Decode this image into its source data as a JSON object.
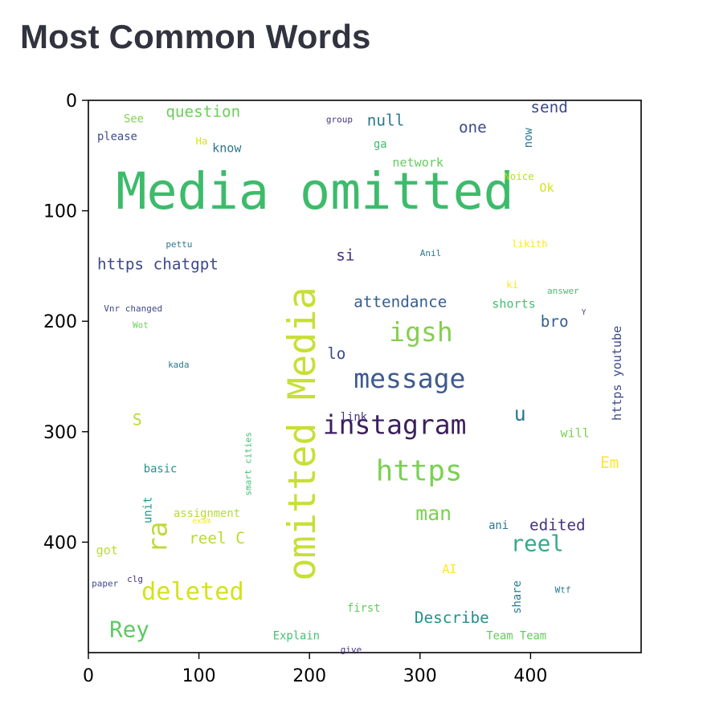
{
  "header": {
    "title": "Most Common Words"
  },
  "chart_data": {
    "type": "wordcloud",
    "title": "",
    "xlabel": "",
    "ylabel": "",
    "xlim": [
      0,
      500
    ],
    "ylim": [
      0,
      500
    ],
    "y_inverted": true,
    "grid": false,
    "xticks": [
      0,
      100,
      200,
      300,
      400
    ],
    "yticks": [
      0,
      100,
      200,
      300,
      400
    ],
    "words": [
      {
        "text": "Media omitted",
        "x": 25,
        "y": 98,
        "size": 46,
        "color": "#3dbb6b",
        "orientation": "horizontal"
      },
      {
        "text": "omitted Media",
        "x": 205,
        "y": 435,
        "size": 34,
        "color": "#c8df34",
        "orientation": "vertical"
      },
      {
        "text": "message",
        "x": 240,
        "y": 260,
        "size": 24,
        "color": "#3e5a8f",
        "orientation": "horizontal"
      },
      {
        "text": "instagram",
        "x": 212,
        "y": 302,
        "size": 24,
        "color": "#3b1f5e",
        "orientation": "horizontal"
      },
      {
        "text": "igsh",
        "x": 272,
        "y": 218,
        "size": 24,
        "color": "#85cf4e",
        "orientation": "horizontal"
      },
      {
        "text": "https",
        "x": 260,
        "y": 344,
        "size": 26,
        "color": "#7ad151",
        "orientation": "horizontal"
      },
      {
        "text": "reel",
        "x": 382,
        "y": 408,
        "size": 20,
        "color": "#36a989",
        "orientation": "horizontal"
      },
      {
        "text": "deleted",
        "x": 48,
        "y": 452,
        "size": 22,
        "color": "#d4e21a",
        "orientation": "horizontal"
      },
      {
        "text": "Rey",
        "x": 19,
        "y": 486,
        "size": 20,
        "color": "#5ec962",
        "orientation": "horizontal"
      },
      {
        "text": "ra",
        "x": 71,
        "y": 410,
        "size": 24,
        "color": "#c0d838",
        "orientation": "vertical"
      },
      {
        "text": "man",
        "x": 296,
        "y": 380,
        "size": 18,
        "color": "#7ad151",
        "orientation": "horizontal"
      },
      {
        "text": "https chatgpt",
        "x": 8,
        "y": 153,
        "size": 14,
        "color": "#3e4a89",
        "orientation": "horizontal"
      },
      {
        "text": "attendance",
        "x": 240,
        "y": 187,
        "size": 14,
        "color": "#355f8d",
        "orientation": "horizontal"
      },
      {
        "text": "question",
        "x": 70,
        "y": 15,
        "size": 14,
        "color": "#6ccd5a",
        "orientation": "horizontal"
      },
      {
        "text": "null",
        "x": 252,
        "y": 23,
        "size": 14,
        "color": "#2a788e",
        "orientation": "horizontal"
      },
      {
        "text": "one",
        "x": 335,
        "y": 29,
        "size": 14,
        "color": "#3e4a89",
        "orientation": "horizontal"
      },
      {
        "text": "send",
        "x": 400,
        "y": 11,
        "size": 14,
        "color": "#3e4a89",
        "orientation": "horizontal"
      },
      {
        "text": "network",
        "x": 275,
        "y": 60,
        "size": 11,
        "color": "#65cb5e",
        "orientation": "horizontal"
      },
      {
        "text": "know",
        "x": 112,
        "y": 47,
        "size": 11,
        "color": "#2a788e",
        "orientation": "horizontal"
      },
      {
        "text": "si",
        "x": 224,
        "y": 145,
        "size": 14,
        "color": "#46337e",
        "orientation": "horizontal"
      },
      {
        "text": "lo",
        "x": 216,
        "y": 234,
        "size": 14,
        "color": "#3e4a89",
        "orientation": "horizontal"
      },
      {
        "text": "bro",
        "x": 409,
        "y": 205,
        "size": 14,
        "color": "#355f8d",
        "orientation": "horizontal"
      },
      {
        "text": "shorts",
        "x": 365,
        "y": 188,
        "size": 11,
        "color": "#43bf71",
        "orientation": "horizontal"
      },
      {
        "text": "https youtube",
        "x": 482,
        "y": 290,
        "size": 11,
        "color": "#3e4a89",
        "orientation": "vertical"
      },
      {
        "text": "u",
        "x": 385,
        "y": 290,
        "size": 18,
        "color": "#2a788e",
        "orientation": "horizontal"
      },
      {
        "text": "will",
        "x": 427,
        "y": 305,
        "size": 11,
        "color": "#7ad151",
        "orientation": "horizontal"
      },
      {
        "text": "Em",
        "x": 463,
        "y": 333,
        "size": 14,
        "color": "#fde725",
        "orientation": "horizontal"
      },
      {
        "text": "edited",
        "x": 399,
        "y": 389,
        "size": 14,
        "color": "#46337e",
        "orientation": "horizontal"
      },
      {
        "text": "ani",
        "x": 362,
        "y": 388,
        "size": 10,
        "color": "#2a788e",
        "orientation": "horizontal"
      },
      {
        "text": "reel C",
        "x": 91,
        "y": 401,
        "size": 14,
        "color": "#b5de2b",
        "orientation": "horizontal"
      },
      {
        "text": "S",
        "x": 40,
        "y": 294,
        "size": 14,
        "color": "#b5de2b",
        "orientation": "horizontal"
      },
      {
        "text": "got",
        "x": 7,
        "y": 411,
        "size": 11,
        "color": "#b5de2b",
        "orientation": "horizontal"
      },
      {
        "text": "Describe",
        "x": 295,
        "y": 473,
        "size": 14,
        "color": "#21918c",
        "orientation": "horizontal"
      },
      {
        "text": "AI",
        "x": 320,
        "y": 428,
        "size": 11,
        "color": "#fde725",
        "orientation": "horizontal"
      },
      {
        "text": "share",
        "x": 391,
        "y": 465,
        "size": 10,
        "color": "#2a788e",
        "orientation": "vertical"
      },
      {
        "text": "Team Team",
        "x": 360,
        "y": 488,
        "size": 10,
        "color": "#65cb5e",
        "orientation": "horizontal"
      },
      {
        "text": "first",
        "x": 234,
        "y": 463,
        "size": 10,
        "color": "#65cb5e",
        "orientation": "horizontal"
      },
      {
        "text": "Explain",
        "x": 167,
        "y": 488,
        "size": 10,
        "color": "#43bf71",
        "orientation": "horizontal"
      },
      {
        "text": "give",
        "x": 228,
        "y": 500,
        "size": 8,
        "color": "#46337e",
        "orientation": "horizontal"
      },
      {
        "text": "Wtf",
        "x": 422,
        "y": 446,
        "size": 8,
        "color": "#2a788e",
        "orientation": "horizontal"
      },
      {
        "text": "paper",
        "x": 3,
        "y": 440,
        "size": 8,
        "color": "#3e4a89",
        "orientation": "horizontal"
      },
      {
        "text": "clg",
        "x": 35,
        "y": 436,
        "size": 8,
        "color": "#46337e",
        "orientation": "horizontal"
      },
      {
        "text": "assignment",
        "x": 77,
        "y": 377,
        "size": 10,
        "color": "#b5de2b",
        "orientation": "horizontal"
      },
      {
        "text": "exam",
        "x": 94,
        "y": 383,
        "size": 7,
        "color": "#fde725",
        "orientation": "horizontal"
      },
      {
        "text": "unit",
        "x": 57,
        "y": 383,
        "size": 10,
        "color": "#21918c",
        "orientation": "vertical"
      },
      {
        "text": "smart cities",
        "x": 147,
        "y": 358,
        "size": 8,
        "color": "#43bf71",
        "orientation": "vertical"
      },
      {
        "text": "basic",
        "x": 50,
        "y": 337,
        "size": 10,
        "color": "#21918c",
        "orientation": "horizontal"
      },
      {
        "text": "link",
        "x": 228,
        "y": 290,
        "size": 10,
        "color": "#46337e",
        "orientation": "horizontal"
      },
      {
        "text": "kada",
        "x": 72,
        "y": 242,
        "size": 8,
        "color": "#2a788e",
        "orientation": "horizontal"
      },
      {
        "text": "Vnr changed",
        "x": 14,
        "y": 191,
        "size": 8,
        "color": "#3e4a89",
        "orientation": "horizontal"
      },
      {
        "text": "Wot",
        "x": 40,
        "y": 206,
        "size": 8,
        "color": "#6ccd5a",
        "orientation": "horizontal"
      },
      {
        "text": "pettu",
        "x": 70,
        "y": 133,
        "size": 8,
        "color": "#2a788e",
        "orientation": "horizontal"
      },
      {
        "text": "See",
        "x": 32,
        "y": 20,
        "size": 10,
        "color": "#84d44b",
        "orientation": "horizontal"
      },
      {
        "text": "please",
        "x": 8,
        "y": 36,
        "size": 10,
        "color": "#3e4a89",
        "orientation": "horizontal"
      },
      {
        "text": "Ha",
        "x": 97,
        "y": 40,
        "size": 9,
        "color": "#d8e219",
        "orientation": "horizontal"
      },
      {
        "text": "group",
        "x": 215,
        "y": 20,
        "size": 8,
        "color": "#46337e",
        "orientation": "horizontal"
      },
      {
        "text": "ga",
        "x": 258,
        "y": 43,
        "size": 10,
        "color": "#3dbb6b",
        "orientation": "horizontal"
      },
      {
        "text": "now",
        "x": 401,
        "y": 43,
        "size": 10,
        "color": "#2a788e",
        "orientation": "vertical"
      },
      {
        "text": "Noice",
        "x": 376,
        "y": 72,
        "size": 9,
        "color": "#b5de2b",
        "orientation": "horizontal"
      },
      {
        "text": "Ok",
        "x": 408,
        "y": 83,
        "size": 11,
        "color": "#d8e219",
        "orientation": "horizontal"
      },
      {
        "text": "likith",
        "x": 383,
        "y": 133,
        "size": 9,
        "color": "#fde725",
        "orientation": "horizontal"
      },
      {
        "text": "Anil",
        "x": 300,
        "y": 141,
        "size": 8,
        "color": "#2a788e",
        "orientation": "horizontal"
      },
      {
        "text": "ki",
        "x": 378,
        "y": 170,
        "size": 9,
        "color": "#fde725",
        "orientation": "horizontal"
      },
      {
        "text": "answer",
        "x": 415,
        "y": 175,
        "size": 8,
        "color": "#43bf71",
        "orientation": "horizontal"
      },
      {
        "text": "Y",
        "x": 446,
        "y": 194,
        "size": 7,
        "color": "#3e4a89",
        "orientation": "horizontal"
      }
    ]
  }
}
